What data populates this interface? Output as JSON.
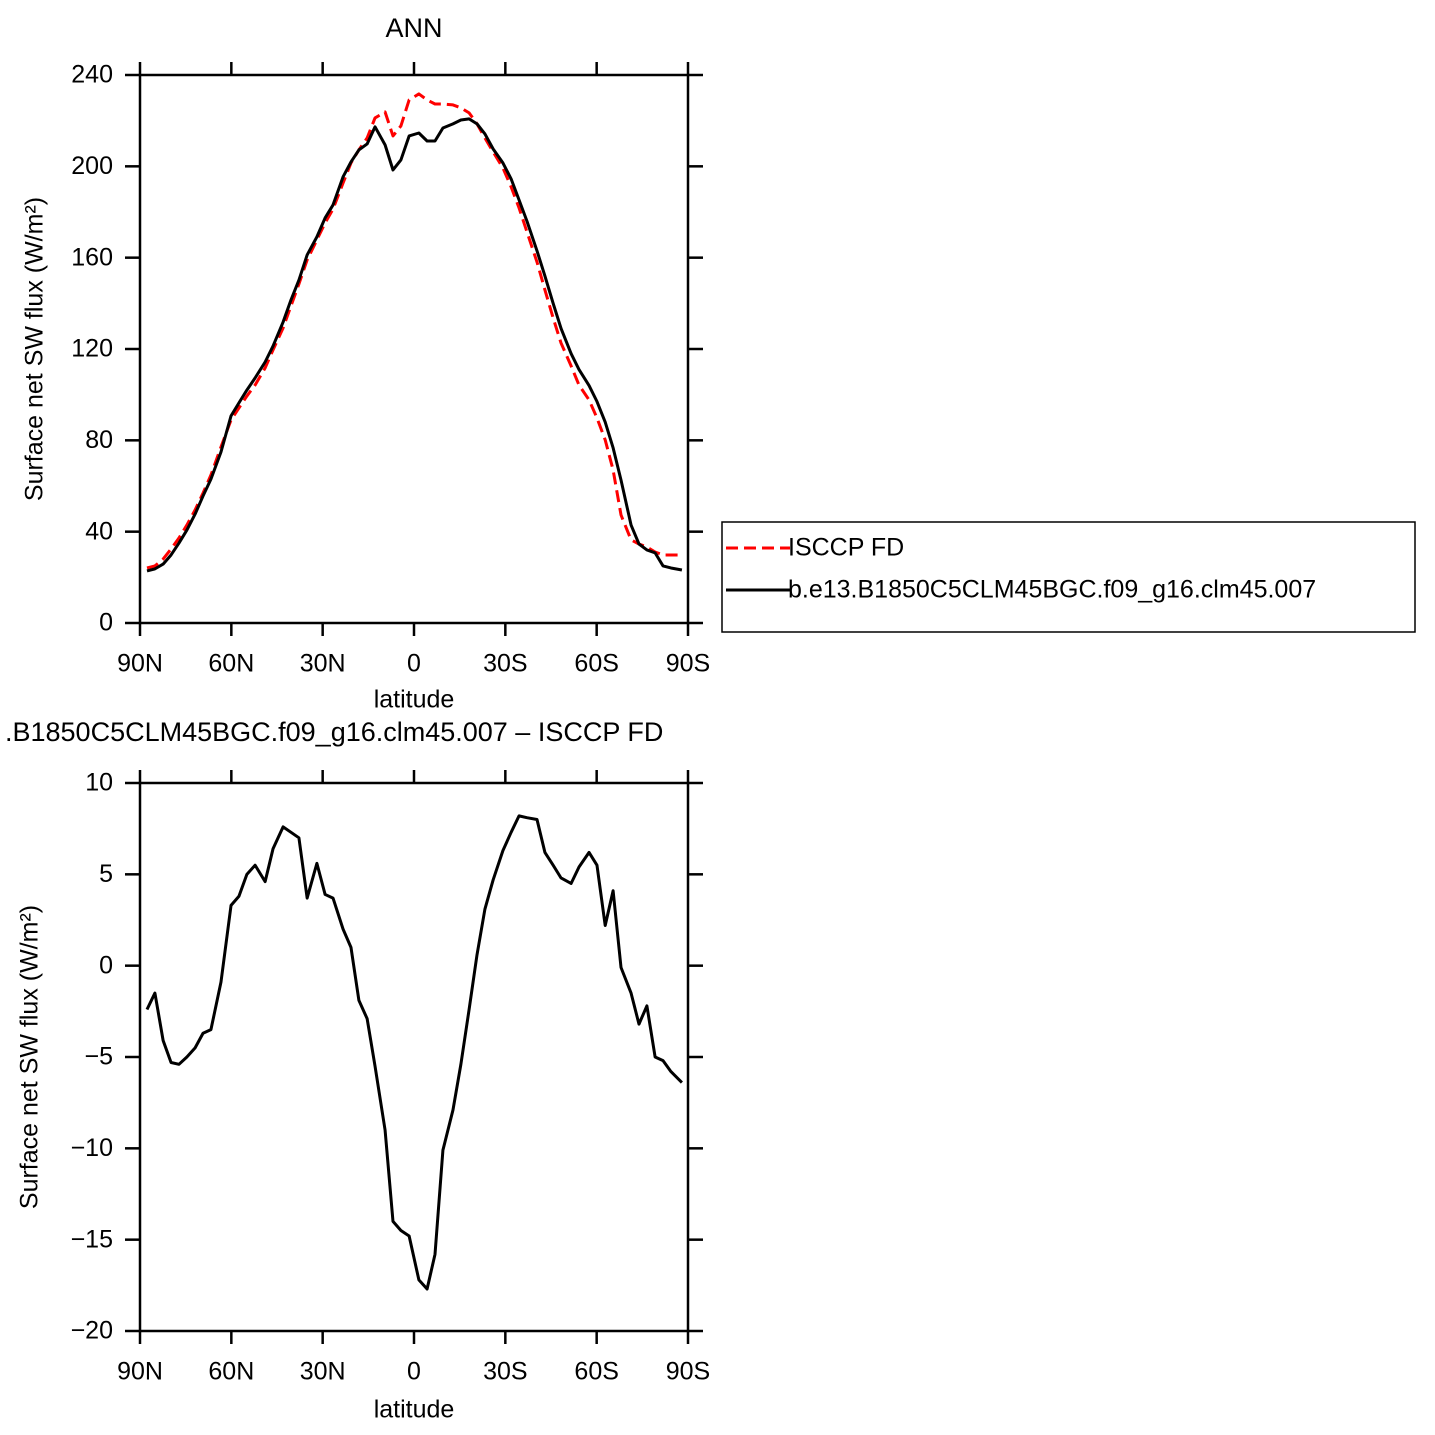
{
  "chart_data": [
    {
      "type": "line",
      "title": "ANN",
      "xlabel": "latitude",
      "ylabel": "Surface net SW flux (W/m²)",
      "x": [
        87.7,
        85.1,
        82.4,
        79.8,
        77.2,
        74.6,
        71.9,
        69.3,
        66.7,
        63.4,
        60.1,
        57.5,
        54.9,
        52.2,
        48.9,
        46.3,
        43.0,
        40.4,
        37.8,
        35.1,
        31.9,
        29.2,
        26.6,
        23.3,
        20.7,
        18.1,
        15.4,
        12.8,
        9.5,
        6.9,
        4.3,
        1.6,
        -1.6,
        -4.3,
        -6.9,
        -9.5,
        -12.8,
        -15.4,
        -18.1,
        -20.7,
        -23.3,
        -26.0,
        -29.2,
        -31.9,
        -34.5,
        -37.1,
        -40.4,
        -43.0,
        -45.7,
        -48.3,
        -51.6,
        -54.2,
        -57.5,
        -60.1,
        -62.8,
        -65.4,
        -68.0,
        -71.3,
        -73.9,
        -76.5,
        -79.2,
        -81.8,
        -84.4,
        -88.0
      ],
      "series": [
        {
          "name": "ISCCP FD",
          "color": "#ff0000",
          "line_style": "dashed",
          "values": [
            24.1,
            25,
            28,
            32.4,
            37.2,
            42.9,
            49.5,
            56.9,
            64.8,
            77.1,
            88.9,
            94.2,
            99.4,
            104.2,
            111.7,
            119.6,
            129.2,
            138.9,
            148.5,
            159,
            167.8,
            175.2,
            181.3,
            192.7,
            201.5,
            207.2,
            212.4,
            221.2,
            223.8,
            213.3,
            217.7,
            229.1,
            231.7,
            229.1,
            227.3,
            227.3,
            226.9,
            225.6,
            223.4,
            218.6,
            212.4,
            206.3,
            199.3,
            191,
            181.8,
            171.3,
            158.1,
            145.9,
            133.6,
            122.6,
            112.6,
            104.2,
            97.7,
            89.8,
            80.2,
            67,
            47.3,
            36.4,
            34.6,
            33.3,
            31.1,
            29.8,
            29.8,
            29.8
          ]
        },
        {
          "name": "b.e13.B1850C5CLM45BGC.f09_g16.clm45.007",
          "color": "#000000",
          "line_style": "solid",
          "values": [
            22.8,
            23.7,
            25.8,
            29.8,
            35,
            40.7,
            47.7,
            55.6,
            63,
            74.9,
            90.7,
            96.4,
            102,
            107.3,
            114.3,
            121.3,
            131.8,
            141.5,
            150.2,
            161.2,
            169.1,
            177.4,
            183.1,
            195.4,
            201.9,
            207.2,
            209.8,
            217.3,
            209.4,
            198.4,
            202.8,
            213.3,
            214.6,
            211.1,
            211.1,
            216.8,
            218.6,
            220.3,
            220.8,
            218.6,
            214.2,
            207.6,
            201.5,
            194.5,
            185.3,
            176,
            163,
            152,
            140,
            129,
            118,
            111,
            104,
            97,
            88,
            76.7,
            62.6,
            42.9,
            34.6,
            32,
            30.7,
            25,
            24.1,
            23.2
          ]
        }
      ],
      "xlim": [
        90,
        -90
      ],
      "xticks": [
        {
          "value": 90,
          "label": "90N"
        },
        {
          "value": 60,
          "label": "60N"
        },
        {
          "value": 30,
          "label": "30N"
        },
        0,
        {
          "value": -30,
          "label": "30S"
        },
        {
          "value": -60,
          "label": "60S"
        },
        {
          "value": -90,
          "label": "90S"
        }
      ],
      "ylim": [
        0,
        240
      ],
      "yticks": [
        0,
        40,
        80,
        120,
        160,
        200,
        240
      ],
      "legend": "right"
    },
    {
      "type": "line",
      "title": ".B1850C5CLM45BGC.f09_g16.clm45.007 – ISCCP FD",
      "xlabel": "latitude",
      "ylabel": "Surface net SW flux (W/m²)",
      "x": [
        87.7,
        85.1,
        82.4,
        79.8,
        77.2,
        74.6,
        71.9,
        69.3,
        66.7,
        63.4,
        60.1,
        57.5,
        54.9,
        52.2,
        48.9,
        46.3,
        43.0,
        40.4,
        37.8,
        35.1,
        31.9,
        29.2,
        26.6,
        23.3,
        20.7,
        18.1,
        15.4,
        12.8,
        9.5,
        6.9,
        4.3,
        1.6,
        -1.6,
        -4.3,
        -6.9,
        -9.5,
        -12.8,
        -15.4,
        -18.1,
        -20.7,
        -23.3,
        -26.0,
        -29.2,
        -31.9,
        -34.5,
        -37.1,
        -40.4,
        -43.0,
        -45.7,
        -48.3,
        -51.6,
        -54.2,
        -57.5,
        -60.1,
        -62.8,
        -65.4,
        -68.0,
        -71.3,
        -73.9,
        -76.5,
        -79.2,
        -81.8,
        -84.4,
        -88.0
      ],
      "series": [
        {
          "color": "#000000",
          "line_style": "solid",
          "values": [
            -2.4,
            -1.5,
            -4.1,
            -5.3,
            -5.4,
            -5.0,
            -4.5,
            -3.7,
            -3.5,
            -0.9,
            3.3,
            3.8,
            5.0,
            5.5,
            4.6,
            6.4,
            7.6,
            7.3,
            7.0,
            3.7,
            5.6,
            3.9,
            3.7,
            2.0,
            1.0,
            -1.9,
            -2.9,
            -5.5,
            -9.0,
            -14.0,
            -14.5,
            -14.8,
            -17.2,
            -17.7,
            -15.8,
            -10.1,
            -7.9,
            -5.4,
            -2.4,
            0.6,
            3.1,
            4.7,
            6.3,
            7.3,
            8.2,
            8.1,
            8.0,
            6.2,
            5.5,
            4.8,
            4.5,
            5.4,
            6.2,
            5.5,
            2.2,
            4.1,
            -0.1,
            -1.5,
            -3.2,
            -2.2,
            -5.0,
            -5.2,
            -5.8,
            -6.4
          ]
        }
      ],
      "xlim": [
        90,
        -90
      ],
      "xticks": [
        {
          "value": 90,
          "label": "90N"
        },
        {
          "value": 60,
          "label": "60N"
        },
        {
          "value": 30,
          "label": "30N"
        },
        0,
        {
          "value": -30,
          "label": "30S"
        },
        {
          "value": -60,
          "label": "60S"
        },
        {
          "value": -90,
          "label": "90S"
        }
      ],
      "ylim": [
        -20,
        10
      ],
      "yticks": [
        {
          "value": -20,
          "label": "−20"
        },
        {
          "value": -15,
          "label": "−15"
        },
        {
          "value": -10,
          "label": "−10"
        },
        {
          "value": -5,
          "label": "−5"
        },
        0,
        5,
        10
      ]
    }
  ]
}
